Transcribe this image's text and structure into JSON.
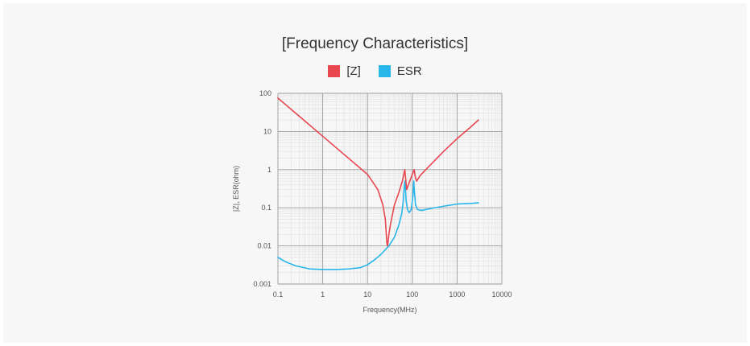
{
  "chart_data": {
    "type": "line",
    "title": "[Frequency Characteristics]",
    "xlabel": "Frequency(MHz)",
    "ylabel": "|Z|, ESR(ohm)",
    "xscale": "log",
    "yscale": "log",
    "xlim": [
      0.1,
      10000
    ],
    "ylim": [
      0.001,
      100
    ],
    "xticks": [
      "0.1",
      "1",
      "10",
      "100",
      "1000",
      "10000"
    ],
    "yticks": [
      "100",
      "10",
      "1",
      "0.1",
      "0.01",
      "0.001"
    ],
    "grid": true,
    "legend_position": "top-center",
    "series": [
      {
        "name": "[Z]",
        "color": "#e8474f",
        "points": [
          [
            0.1,
            75
          ],
          [
            0.3,
            25
          ],
          [
            1,
            7.5
          ],
          [
            3,
            2.5
          ],
          [
            10,
            0.75
          ],
          [
            17,
            0.3
          ],
          [
            22,
            0.12
          ],
          [
            25,
            0.05
          ],
          [
            27,
            0.012
          ],
          [
            28,
            0.01
          ],
          [
            30,
            0.02
          ],
          [
            33,
            0.04
          ],
          [
            40,
            0.12
          ],
          [
            50,
            0.25
          ],
          [
            60,
            0.5
          ],
          [
            68,
            1.0
          ],
          [
            72,
            0.5
          ],
          [
            75,
            0.3
          ],
          [
            85,
            0.45
          ],
          [
            100,
            0.75
          ],
          [
            110,
            1.0
          ],
          [
            118,
            0.6
          ],
          [
            125,
            0.5
          ],
          [
            150,
            0.7
          ],
          [
            200,
            1.0
          ],
          [
            500,
            3.0
          ],
          [
            1000,
            6.5
          ],
          [
            2000,
            13
          ],
          [
            3000,
            20
          ]
        ]
      },
      {
        "name": "ESR",
        "color": "#29b6e8",
        "points": [
          [
            0.1,
            0.005
          ],
          [
            0.15,
            0.0038
          ],
          [
            0.25,
            0.003
          ],
          [
            0.5,
            0.0025
          ],
          [
            1,
            0.0024
          ],
          [
            2,
            0.0024
          ],
          [
            4,
            0.0025
          ],
          [
            7,
            0.0027
          ],
          [
            10,
            0.0032
          ],
          [
            15,
            0.0045
          ],
          [
            20,
            0.006
          ],
          [
            30,
            0.01
          ],
          [
            40,
            0.017
          ],
          [
            50,
            0.035
          ],
          [
            58,
            0.07
          ],
          [
            63,
            0.15
          ],
          [
            66,
            0.35
          ],
          [
            68,
            0.5
          ],
          [
            70,
            0.35
          ],
          [
            73,
            0.15
          ],
          [
            78,
            0.09
          ],
          [
            85,
            0.075
          ],
          [
            95,
            0.09
          ],
          [
            103,
            0.2
          ],
          [
            108,
            0.5
          ],
          [
            112,
            0.25
          ],
          [
            118,
            0.12
          ],
          [
            130,
            0.09
          ],
          [
            160,
            0.085
          ],
          [
            250,
            0.095
          ],
          [
            500,
            0.11
          ],
          [
            1000,
            0.125
          ],
          [
            2000,
            0.13
          ],
          [
            3000,
            0.135
          ]
        ]
      }
    ]
  }
}
